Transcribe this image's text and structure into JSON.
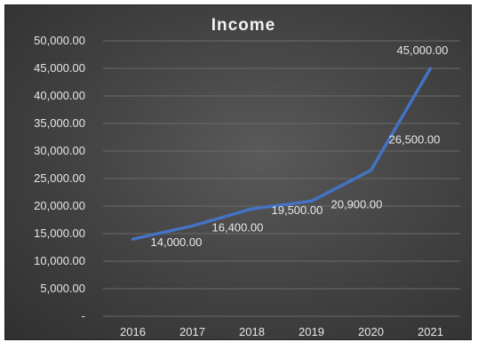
{
  "chart_data": {
    "type": "line",
    "title": "Income",
    "xlabel": "",
    "ylabel": "",
    "categories": [
      "2016",
      "2017",
      "2018",
      "2019",
      "2020",
      "2021"
    ],
    "series": [
      {
        "values": [
          14000,
          16400,
          19500,
          20900,
          26500,
          45000
        ]
      }
    ],
    "data_labels": [
      "14,000.00",
      "16,400.00",
      "19,500.00",
      "20,900.00",
      "26,500.00",
      "45,000.00"
    ],
    "ylim": [
      0,
      50000
    ],
    "yticks": [
      0,
      5000,
      10000,
      15000,
      20000,
      25000,
      30000,
      35000,
      40000,
      45000,
      50000
    ],
    "ytick_labels": [
      "-",
      "5,000.00",
      "10,000.00",
      "15,000.00",
      "20,000.00",
      "25,000.00",
      "30,000.00",
      "35,000.00",
      "40,000.00",
      "45,000.00",
      "50,000.00"
    ],
    "grid": true,
    "legend": "none",
    "colors": {
      "line": "#4472c4",
      "background": "#404040",
      "gridline": "#6a6a6a",
      "text": "#e6e6e6"
    }
  }
}
